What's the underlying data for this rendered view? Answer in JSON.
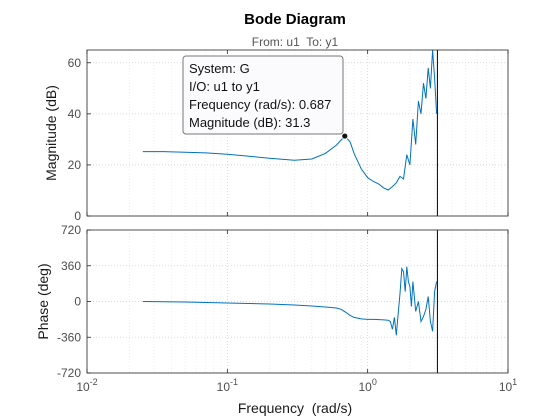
{
  "chart_data": {
    "type": "line",
    "title": "Bode Diagram",
    "subtitle": "From: u1  To: y1",
    "xlabel": "Frequency  (rad/s)",
    "x_scale": "log",
    "xlim": [
      0.01,
      10
    ],
    "x_ticks": [
      0.01,
      0.1,
      1,
      10
    ],
    "x_tick_labels": [
      {
        "base": "10",
        "exp": "-2"
      },
      {
        "base": "10",
        "exp": "-1"
      },
      {
        "base": "10",
        "exp": "0"
      },
      {
        "base": "10",
        "exp": "1"
      }
    ],
    "grid": true,
    "series_color": "#0072bd",
    "vline_x": 3.14,
    "panels": [
      {
        "name": "magnitude",
        "ylabel": "Magnitude (dB)",
        "ylim": [
          0,
          65
        ],
        "y_ticks": [
          0,
          20,
          40,
          60
        ],
        "y_tick_labels": [
          "0",
          "20",
          "40",
          "60"
        ],
        "x": [
          0.025,
          0.035,
          0.05,
          0.07,
          0.1,
          0.15,
          0.2,
          0.3,
          0.4,
          0.5,
          0.6,
          0.687,
          0.75,
          0.8,
          0.9,
          1.0,
          1.1,
          1.2,
          1.3,
          1.4,
          1.5,
          1.6,
          1.7,
          1.8,
          1.9,
          2.0,
          2.1,
          2.2,
          2.3,
          2.4,
          2.5,
          2.6,
          2.7,
          2.8,
          2.9,
          3.0,
          3.1
        ],
        "y": [
          25.2,
          25.2,
          25.0,
          24.7,
          24.2,
          23.3,
          22.6,
          21.8,
          22.3,
          24.5,
          27.8,
          31.3,
          29.0,
          24.5,
          18.5,
          15.0,
          13.5,
          12.5,
          11.0,
          10.2,
          11.5,
          13.0,
          15.5,
          14.5,
          24.0,
          20.0,
          38.0,
          28.0,
          45.0,
          40.0,
          52.0,
          46.0,
          58.0,
          50.0,
          65.0,
          54.0,
          40.0
        ]
      },
      {
        "name": "phase",
        "ylabel": "Phase (deg)",
        "ylim": [
          -720,
          720
        ],
        "y_ticks": [
          -720,
          -360,
          0,
          360,
          720
        ],
        "y_tick_labels": [
          "-720",
          "-360",
          "0",
          "360",
          "720"
        ],
        "x": [
          0.025,
          0.05,
          0.1,
          0.2,
          0.3,
          0.4,
          0.5,
          0.6,
          0.65,
          0.7,
          0.75,
          0.8,
          0.9,
          1.0,
          1.1,
          1.2,
          1.3,
          1.4,
          1.45,
          1.5,
          1.55,
          1.6,
          1.65,
          1.7,
          1.75,
          1.8,
          1.85,
          1.9,
          1.95,
          2.0,
          2.05,
          2.1,
          2.2,
          2.3,
          2.4,
          2.5,
          2.6,
          2.7,
          2.8,
          2.9,
          3.0,
          3.1
        ],
        "y": [
          0,
          -5,
          -15,
          -25,
          -35,
          -45,
          -55,
          -65,
          -80,
          -110,
          -140,
          -160,
          -175,
          -180,
          -180,
          -182,
          -185,
          -188,
          -200,
          -280,
          -160,
          -340,
          -120,
          80,
          330,
          300,
          100,
          350,
          200,
          150,
          -50,
          200,
          -100,
          0,
          -200,
          -150,
          -80,
          50,
          -200,
          -300,
          100,
          200
        ]
      }
    ],
    "datatip": {
      "x": 0.687,
      "y": 31.3,
      "lines": [
        "System: G",
        "I/O: u1 to y1",
        "Frequency (rad/s): 0.687",
        "Magnitude (dB): 31.3"
      ]
    }
  }
}
